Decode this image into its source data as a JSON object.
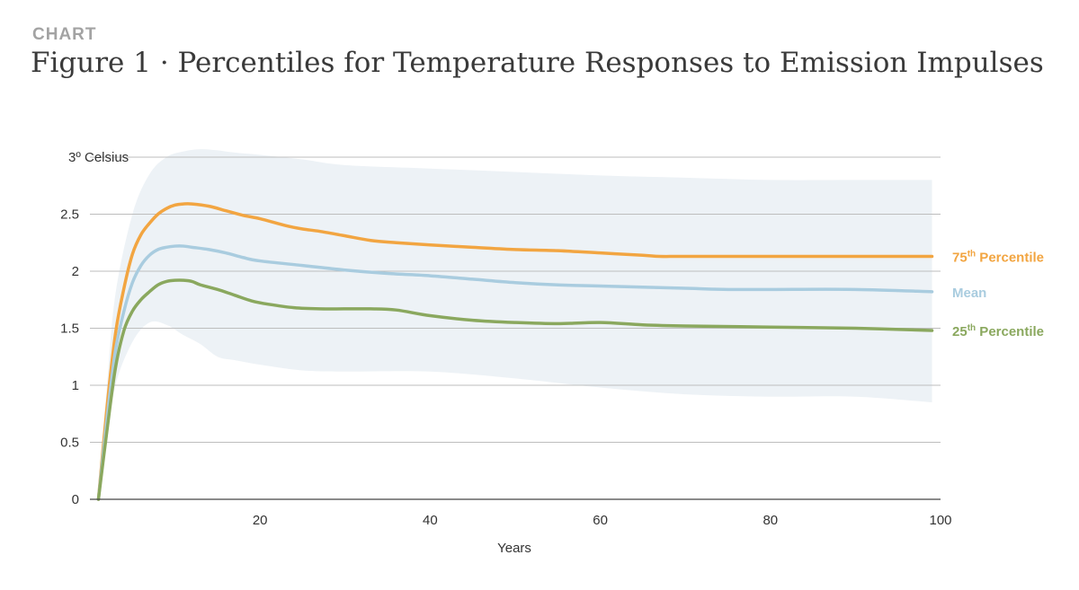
{
  "header": {
    "kicker": "CHART",
    "title": "Figure 1 · Percentiles for Temperature Responses to Emission Impulses"
  },
  "chart_data": {
    "type": "line",
    "title": "Figure 1 · Percentiles for Temperature Responses to Emission Impulses",
    "xlabel": "Years",
    "ylabel": "Celsius",
    "xlim": [
      0,
      100
    ],
    "ylim": [
      0,
      3
    ],
    "x_ticks": [
      "20",
      "40",
      "60",
      "80",
      "100"
    ],
    "x_tick_values": [
      20,
      40,
      60,
      80,
      100
    ],
    "y_ticks": [
      "0",
      "0.5",
      "1",
      "1.5",
      "2",
      "2.5",
      "3º Celsius"
    ],
    "y_tick_values": [
      0,
      0.5,
      1,
      1.5,
      2,
      2.5,
      3
    ],
    "grid": true,
    "colors": {
      "p75": "#f2a541",
      "mean": "#a9ccdf",
      "p25": "#8aa85e",
      "band": "#edf2f6",
      "grid": "#bdbdbd",
      "axis": "#444444"
    },
    "band": {
      "name": "range",
      "x": [
        1,
        2,
        3,
        5,
        7,
        9,
        11,
        13,
        15,
        17,
        20,
        25,
        30,
        40,
        50,
        60,
        70,
        80,
        90,
        99
      ],
      "upper": [
        0.1,
        1.0,
        1.8,
        2.5,
        2.85,
        3.0,
        3.05,
        3.07,
        3.06,
        3.04,
        3.02,
        2.98,
        2.93,
        2.9,
        2.87,
        2.84,
        2.82,
        2.8,
        2.8,
        2.8
      ],
      "lower": [
        0.0,
        0.5,
        1.0,
        1.38,
        1.55,
        1.53,
        1.44,
        1.36,
        1.25,
        1.22,
        1.18,
        1.13,
        1.12,
        1.12,
        1.06,
        0.98,
        0.92,
        0.9,
        0.9,
        0.85
      ]
    },
    "series": [
      {
        "name": "75th Percentile",
        "label_main": "75",
        "label_sup": "th",
        "label_rest": " Percentile",
        "color_key": "p75",
        "x": [
          1,
          2,
          3,
          4,
          5,
          6,
          7,
          8,
          9,
          10,
          11,
          12,
          14,
          16,
          18,
          20,
          23,
          25,
          27,
          30,
          33,
          36,
          40,
          45,
          50,
          55,
          60,
          65,
          67,
          70,
          80,
          90,
          99
        ],
        "values": [
          0.0,
          0.8,
          1.45,
          1.85,
          2.15,
          2.32,
          2.42,
          2.5,
          2.55,
          2.58,
          2.59,
          2.59,
          2.57,
          2.53,
          2.49,
          2.46,
          2.4,
          2.37,
          2.35,
          2.31,
          2.27,
          2.25,
          2.23,
          2.21,
          2.19,
          2.18,
          2.16,
          2.14,
          2.13,
          2.13,
          2.13,
          2.13,
          2.13
        ]
      },
      {
        "name": "Mean",
        "label_main": "Mean",
        "label_sup": "",
        "label_rest": "",
        "color_key": "mean",
        "x": [
          1,
          2,
          3,
          4,
          5,
          6,
          7,
          8,
          9,
          10,
          11,
          12,
          14,
          16,
          18,
          20,
          25,
          30,
          35,
          40,
          45,
          50,
          55,
          60,
          70,
          75,
          80,
          90,
          99
        ],
        "values": [
          0.0,
          0.7,
          1.3,
          1.65,
          1.9,
          2.05,
          2.14,
          2.19,
          2.21,
          2.22,
          2.22,
          2.21,
          2.19,
          2.16,
          2.12,
          2.09,
          2.05,
          2.01,
          1.98,
          1.96,
          1.93,
          1.9,
          1.88,
          1.87,
          1.85,
          1.84,
          1.84,
          1.84,
          1.82
        ]
      },
      {
        "name": "25th Percentile",
        "label_main": "25",
        "label_sup": "th",
        "label_rest": " Percentile",
        "color_key": "p25",
        "x": [
          1,
          2,
          3,
          4,
          5,
          6,
          7,
          8,
          9,
          10,
          11,
          12,
          13,
          15,
          17,
          19,
          21,
          24,
          27,
          30,
          33,
          36,
          40,
          45,
          50,
          55,
          60,
          65,
          70,
          80,
          90,
          99
        ],
        "values": [
          0.0,
          0.6,
          1.15,
          1.48,
          1.65,
          1.75,
          1.82,
          1.88,
          1.91,
          1.92,
          1.92,
          1.91,
          1.88,
          1.84,
          1.79,
          1.74,
          1.71,
          1.68,
          1.67,
          1.67,
          1.67,
          1.66,
          1.61,
          1.57,
          1.55,
          1.54,
          1.55,
          1.53,
          1.52,
          1.51,
          1.5,
          1.48
        ]
      }
    ]
  }
}
